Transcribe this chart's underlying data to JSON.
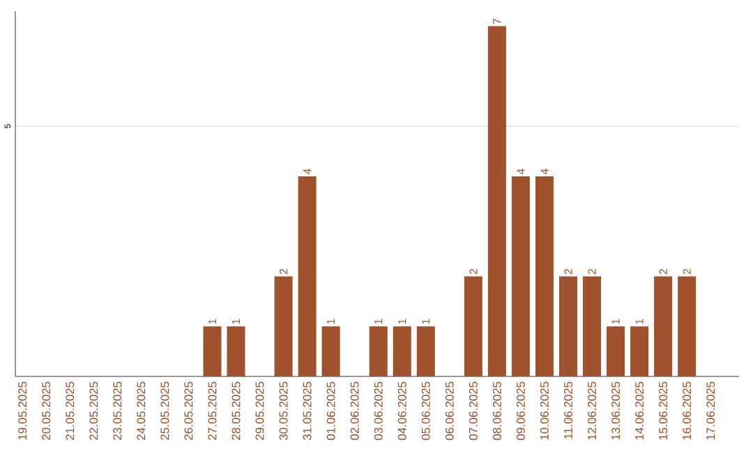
{
  "chart_data": {
    "type": "bar",
    "categories": [
      "19.05.2025",
      "20.05.2025",
      "21.05.2025",
      "22.05.2025",
      "23.05.2025",
      "24.05.2025",
      "25.05.2025",
      "26.05.2025",
      "27.05.2025",
      "28.05.2025",
      "29.05.2025",
      "30.05.2025",
      "31.05.2025",
      "01.06.2025",
      "02.06.2025",
      "03.06.2025",
      "04.06.2025",
      "05.06.2025",
      "06.06.2025",
      "07.06.2025",
      "08.06.2025",
      "09.06.2025",
      "10.06.2025",
      "11.06.2025",
      "12.06.2025",
      "13.06.2025",
      "14.06.2025",
      "15.06.2025",
      "16.06.2025",
      "17.06.2025"
    ],
    "values": [
      0,
      0,
      0,
      0,
      0,
      0,
      0,
      0,
      1,
      1,
      0,
      2,
      4,
      1,
      0,
      1,
      1,
      1,
      0,
      2,
      7,
      4,
      4,
      2,
      2,
      1,
      1,
      2,
      2,
      0
    ],
    "value_labels": [
      null,
      null,
      null,
      null,
      null,
      null,
      null,
      null,
      "1",
      "1",
      null,
      "2",
      "4",
      "1",
      null,
      "1",
      "1",
      "1",
      null,
      "2",
      "7",
      "4",
      "4",
      "2",
      "2",
      "1",
      "1",
      "2",
      "2",
      null
    ],
    "color": "#a0522d",
    "ylim": [
      0,
      7.3
    ],
    "yticks": [
      5
    ],
    "grid": "y"
  }
}
